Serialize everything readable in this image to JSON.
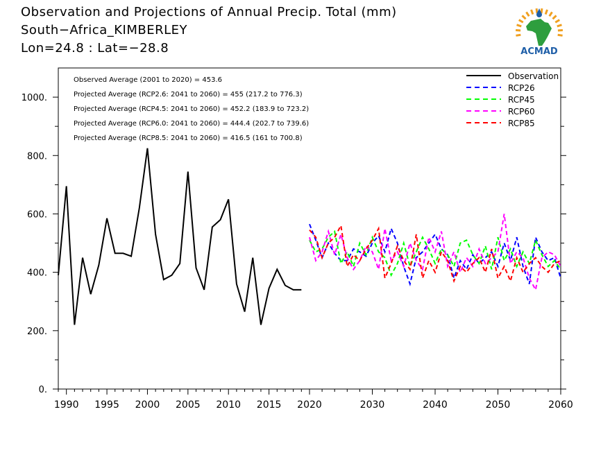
{
  "header": {
    "title": "Observation and Projections of Annual Precip. Total (mm)",
    "location": "South−Africa_KIMBERLEY",
    "coords": "Lon=24.8 : Lat=−28.8"
  },
  "logo": {
    "text": "ACMAD",
    "icon": "africa-map-logo"
  },
  "colors": {
    "observation": "#000000",
    "rcp26": "#0000ff",
    "rcp45": "#00ff00",
    "rcp60": "#ff00ff",
    "rcp85": "#ff0000",
    "logo_text": "#1f5fa8",
    "logo_map": "#2e9e3e",
    "logo_rays": "#f0a020"
  },
  "chart_data": {
    "type": "line",
    "title": "Observation and Projections of Annual Precip. Total (mm)",
    "xlabel": "",
    "ylabel": "",
    "ylim": [
      0,
      1100
    ],
    "grid": false,
    "legend_position": "top-right",
    "left_axis": {
      "xlim": [
        1989,
        2020
      ],
      "ticks": [
        1990,
        1995,
        2000,
        2005,
        2010,
        2015,
        2020
      ]
    },
    "right_axis": {
      "xlim": [
        2020,
        2060
      ],
      "ticks": [
        2030,
        2040,
        2050,
        2060
      ]
    },
    "y_ticks": [
      "0.",
      "200.",
      "400.",
      "600.",
      "800.",
      "1000."
    ],
    "y_tick_values": [
      0,
      200,
      400,
      600,
      800,
      1000
    ],
    "x_tick_labels": [
      "1990",
      "1995",
      "2000",
      "2005",
      "2010",
      "2015",
      "2020",
      "2030",
      "2040",
      "2050",
      "2060"
    ],
    "annotations": [
      "Observed Average (2001 to 2020) = 453.6",
      "Projected Average (RCP2.6: 2041 to 2060) = 455 (217.2 to 776.3)",
      "Projected Average (RCP4.5: 2041 to 2060) = 452.2 (183.9 to 723.2)",
      "Projected Average (RCP6.0: 2041 to 2060) = 444.4 (202.7 to 739.6)",
      "Projected Average (RCP8.5: 2041 to 2060) = 416.5 (161 to 700.8)"
    ],
    "legend": [
      "Observation",
      "RCP26",
      "RCP45",
      "RCP60",
      "RCP85"
    ],
    "observation": {
      "name": "Observation",
      "x": [
        1989,
        1990,
        1991,
        1992,
        1993,
        1994,
        1995,
        1996,
        1997,
        1998,
        1999,
        2000,
        2001,
        2002,
        2003,
        2004,
        2005,
        2006,
        2007,
        2008,
        2009,
        2010,
        2011,
        2012,
        2013,
        2014,
        2015,
        2016,
        2017,
        2018,
        2019
      ],
      "values": [
        390,
        695,
        220,
        450,
        325,
        425,
        585,
        465,
        465,
        455,
        620,
        825,
        530,
        375,
        390,
        430,
        745,
        415,
        340,
        555,
        580,
        650,
        360,
        265,
        450,
        220,
        345,
        410,
        355,
        340,
        340
      ]
    },
    "projections": {
      "x": [
        2020,
        2021,
        2022,
        2023,
        2024,
        2025,
        2026,
        2027,
        2028,
        2029,
        2030,
        2031,
        2032,
        2033,
        2034,
        2035,
        2036,
        2037,
        2038,
        2039,
        2040,
        2041,
        2042,
        2043,
        2044,
        2045,
        2046,
        2047,
        2048,
        2049,
        2050,
        2051,
        2052,
        2053,
        2054,
        2055,
        2056,
        2057,
        2058,
        2059,
        2060
      ],
      "series": [
        {
          "name": "RCP26",
          "values": [
            565,
            510,
            450,
            500,
            465,
            440,
            440,
            480,
            470,
            455,
            500,
            525,
            470,
            550,
            500,
            420,
            360,
            450,
            470,
            500,
            530,
            480,
            460,
            380,
            440,
            410,
            460,
            430,
            450,
            470,
            420,
            500,
            440,
            520,
            420,
            360,
            520,
            470,
            440,
            450,
            380
          ]
        },
        {
          "name": "RCP45",
          "values": [
            510,
            470,
            480,
            520,
            540,
            430,
            470,
            420,
            500,
            460,
            520,
            470,
            450,
            390,
            430,
            500,
            420,
            470,
            520,
            480,
            430,
            480,
            460,
            420,
            500,
            510,
            460,
            430,
            490,
            410,
            520,
            440,
            480,
            420,
            470,
            430,
            510,
            460,
            420,
            440,
            410
          ]
        },
        {
          "name": "RCP60",
          "values": [
            520,
            440,
            470,
            540,
            460,
            530,
            450,
            410,
            440,
            490,
            470,
            410,
            550,
            440,
            470,
            420,
            500,
            440,
            410,
            520,
            470,
            540,
            420,
            470,
            400,
            450,
            420,
            480,
            430,
            450,
            470,
            600,
            430,
            470,
            450,
            380,
            340,
            450,
            470,
            460,
            420
          ]
        },
        {
          "name": "RCP85",
          "values": [
            545,
            520,
            450,
            500,
            520,
            560,
            420,
            460,
            440,
            480,
            510,
            550,
            380,
            430,
            490,
            440,
            410,
            530,
            380,
            440,
            400,
            470,
            440,
            370,
            420,
            400,
            430,
            450,
            400,
            480,
            380,
            420,
            370,
            450,
            400,
            430,
            450,
            420,
            400,
            430,
            440
          ]
        }
      ]
    }
  }
}
